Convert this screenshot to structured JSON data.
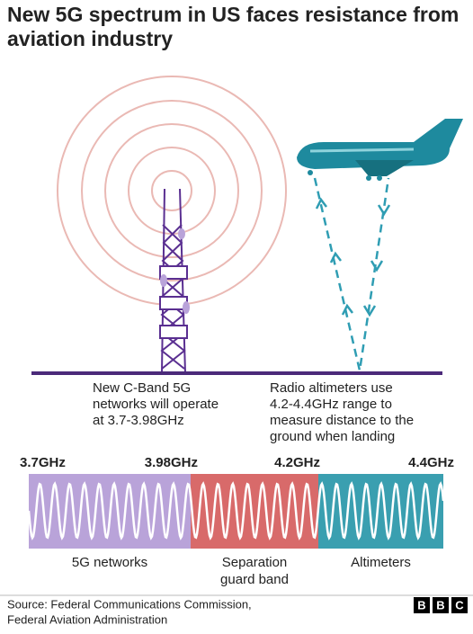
{
  "title": [
    "New 5G spectrum in US faces resistance from",
    "aviation industry"
  ],
  "annotations": {
    "tower": [
      "New C-Band 5G",
      "networks will operate",
      "at 3.7-3.98GHz"
    ],
    "altimeter": [
      "Radio altimeters use",
      "4.2-4.4GHz range to",
      "measure distance to the",
      "ground when landing"
    ]
  },
  "spectrum": {
    "ticks": [
      "3.7GHz",
      "3.98GHz",
      "4.2GHz",
      "4.4GHz"
    ],
    "bands": [
      {
        "label": [
          "5G networks"
        ],
        "color": "#b9a3d9"
      },
      {
        "label": [
          "Separation",
          "guard band"
        ],
        "color": "#d86a6a"
      },
      {
        "label": [
          "Altimeters"
        ],
        "color": "#3a9fb0"
      }
    ]
  },
  "source": [
    "Source: Federal Communications Commission,",
    "Federal Aviation Administration"
  ],
  "logo": [
    "B",
    "B",
    "C"
  ]
}
